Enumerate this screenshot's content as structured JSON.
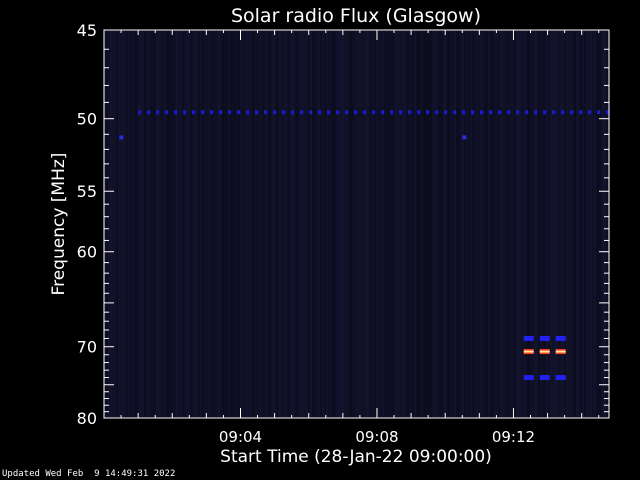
{
  "chart_data": {
    "type": "heatmap",
    "title": "Solar radio Flux (Glasgow)",
    "xlabel": "Start Time (28-Jan-22 09:00:00)",
    "ylabel": "Frequency [MHz]",
    "x_unit": "minutes after 09:00:00",
    "xlim": [
      0,
      14.8
    ],
    "ylim": [
      45,
      80
    ],
    "x_tick_labels": [
      {
        "at_minute": 4,
        "label": "09:04"
      },
      {
        "at_minute": 8,
        "label": "09:08"
      },
      {
        "at_minute": 12,
        "label": "09:12"
      }
    ],
    "y_tick_labels": [
      {
        "at_mhz": 45,
        "label": "45"
      },
      {
        "at_mhz": 50,
        "label": "50"
      },
      {
        "at_mhz": 55,
        "label": "55"
      },
      {
        "at_mhz": 60,
        "label": "60"
      },
      {
        "at_mhz": 70,
        "label": "70"
      },
      {
        "at_mhz": 80,
        "label": "80"
      }
    ],
    "background_color": "#0c0c22",
    "features": [
      {
        "name": "interference-line-50mhz",
        "frequency_mhz": 49.6,
        "time_minutes": [
          1.0,
          14.8
        ],
        "intensity": "low",
        "color": "#1a1ad0"
      },
      {
        "name": "interference-dot-51mhz-a",
        "frequency_mhz": 51.2,
        "time_minutes": [
          0.45,
          0.55
        ],
        "intensity": "low",
        "color": "#2a2ae0"
      },
      {
        "name": "interference-dot-51mhz-b",
        "frequency_mhz": 51.2,
        "time_minutes": [
          10.5,
          10.6
        ],
        "intensity": "low",
        "color": "#2a2ae0"
      },
      {
        "name": "band-69mhz",
        "frequency_mhz": 69.0,
        "time_minutes": [
          12.3,
          13.5
        ],
        "intensity": "medium",
        "color": "#2222ee"
      },
      {
        "name": "band-70mhz",
        "frequency_mhz": 70.6,
        "time_minutes": [
          12.3,
          13.5
        ],
        "intensity": "high",
        "color": "#ff4020"
      },
      {
        "name": "band-74mhz",
        "frequency_mhz": 74.0,
        "time_minutes": [
          12.3,
          13.5
        ],
        "intensity": "medium",
        "color": "#2222ee"
      }
    ]
  },
  "footer": {
    "updated": "Updated Wed Feb  9 14:49:31 2022"
  }
}
